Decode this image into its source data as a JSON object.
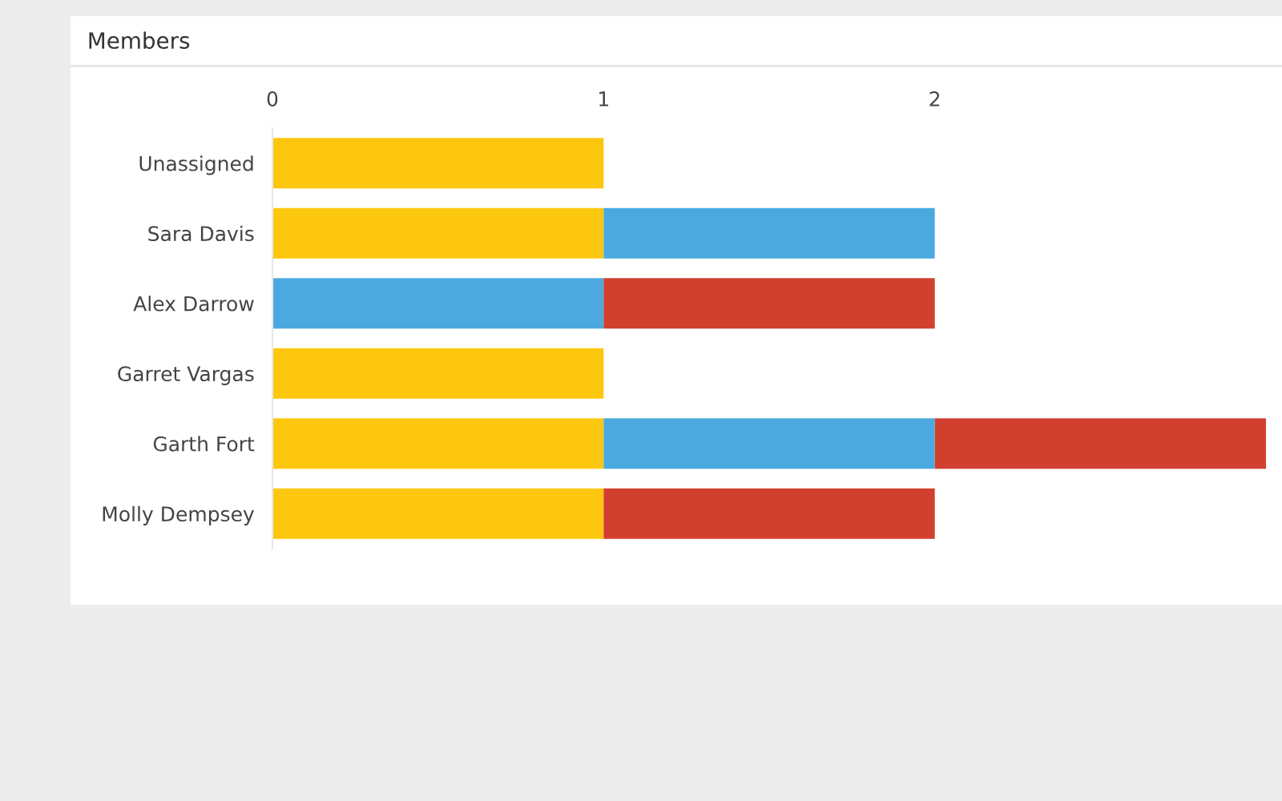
{
  "chart_data": {
    "type": "bar",
    "orientation": "horizontal",
    "stacked": true,
    "title": "Members",
    "categories": [
      "Unassigned",
      "Sara Davis",
      "Alex Darrow",
      "Garret Vargas",
      "Garth Fort",
      "Molly Dempsey"
    ],
    "series": [
      {
        "color": "#fec70f",
        "values": [
          1,
          1,
          null,
          1,
          1,
          1
        ]
      },
      {
        "color": "#4ba9df",
        "values": [
          null,
          1,
          1,
          null,
          1,
          null
        ]
      },
      {
        "color": "#d33f2f",
        "values": [
          null,
          null,
          1,
          null,
          1,
          1
        ]
      }
    ],
    "xlim": [
      0,
      3
    ],
    "xticks": [
      0,
      1,
      2
    ],
    "grid": false,
    "legend": false
  }
}
